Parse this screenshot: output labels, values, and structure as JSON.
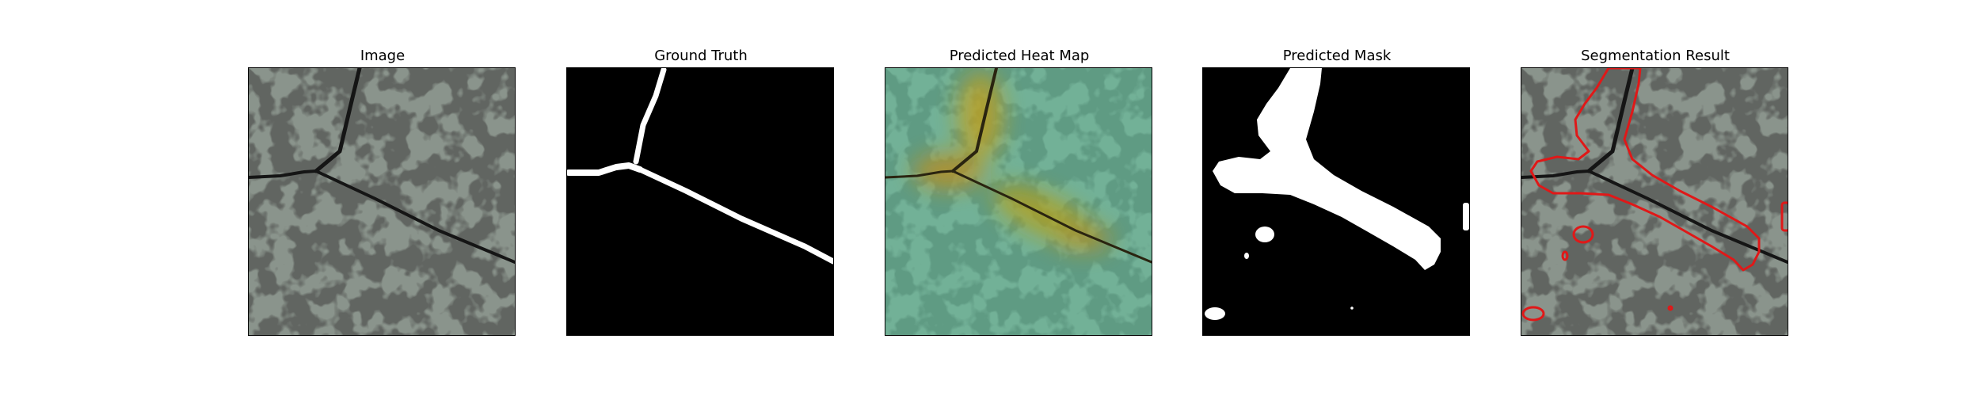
{
  "panels": [
    {
      "title": "Image"
    },
    {
      "title": "Ground Truth"
    },
    {
      "title": "Predicted Heat Map"
    },
    {
      "title": "Predicted Mask"
    },
    {
      "title": "Segmentation Result"
    }
  ],
  "colors": {
    "texture_base": "#8a948c",
    "texture_spot": "#3a3a3a",
    "crack": "#1a1a1a",
    "heat_overlay": "#5fc9a0",
    "heat_hot": "#b8a018",
    "mask_fg": "#ffffff",
    "mask_bg": "#000000",
    "contour": "#e01818"
  }
}
